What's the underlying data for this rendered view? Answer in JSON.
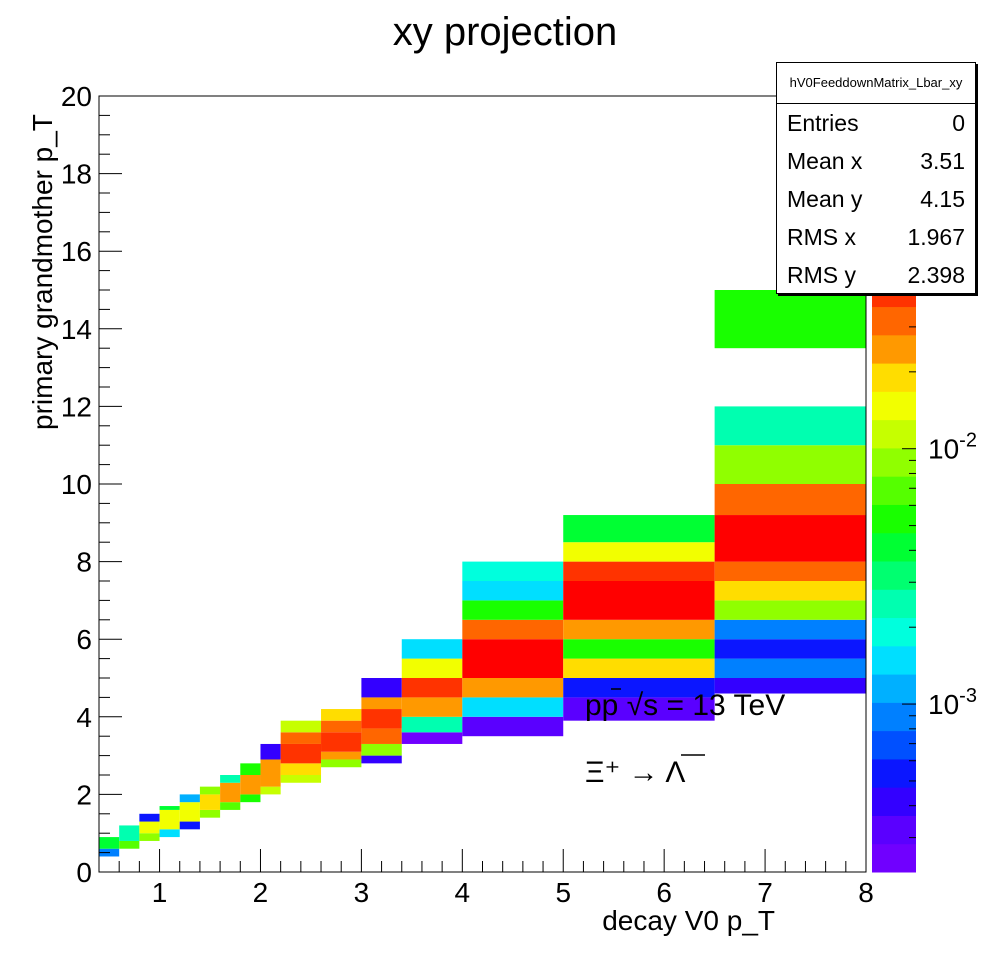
{
  "chart_data": {
    "type": "heatmap",
    "title": "xy projection",
    "xlabel": "decay V0 p_T",
    "ylabel": "primary grandmother p_T",
    "xlim": [
      0.4,
      8
    ],
    "ylim": [
      0,
      20
    ],
    "x_ticks": [
      "1",
      "2",
      "3",
      "4",
      "5",
      "6",
      "7",
      "8"
    ],
    "y_ticks": [
      "0",
      "2",
      "4",
      "6",
      "8",
      "10",
      "12",
      "14",
      "16",
      "18",
      "20"
    ],
    "z_scale": "log",
    "z_ticks": [
      "10^-3",
      "10^-2"
    ],
    "z_range": [
      0.00022,
      0.06
    ],
    "palette": [
      "#7000ff",
      "#5a00ff",
      "#3300ff",
      "#0b16ff",
      "#0050ff",
      "#0080ff",
      "#00b0ff",
      "#00dfff",
      "#00ffdd",
      "#00ffb0",
      "#00ff70",
      "#00ff33",
      "#19ff00",
      "#55ff00",
      "#90ff00",
      "#c6ff00",
      "#f2ff00",
      "#ffdd00",
      "#ff9900",
      "#ff6600",
      "#ff3300",
      "#ff0000"
    ],
    "cells": [
      {
        "x": [
          0.4,
          0.6
        ],
        "y": [
          0.4,
          0.6
        ],
        "c": 5
      },
      {
        "x": [
          0.4,
          0.6
        ],
        "y": [
          0.6,
          0.9
        ],
        "c": 11
      },
      {
        "x": [
          0.6,
          0.8
        ],
        "y": [
          0.6,
          0.8
        ],
        "c": 13
      },
      {
        "x": [
          0.6,
          0.8
        ],
        "y": [
          0.8,
          1.2
        ],
        "c": 9
      },
      {
        "x": [
          0.8,
          1.0
        ],
        "y": [
          0.8,
          1.0
        ],
        "c": 14
      },
      {
        "x": [
          0.8,
          1.0
        ],
        "y": [
          1.0,
          1.3
        ],
        "c": 16
      },
      {
        "x": [
          0.8,
          1.0
        ],
        "y": [
          1.3,
          1.5
        ],
        "c": 3
      },
      {
        "x": [
          1.0,
          1.2
        ],
        "y": [
          0.9,
          1.1
        ],
        "c": 7
      },
      {
        "x": [
          1.0,
          1.2
        ],
        "y": [
          1.1,
          1.6
        ],
        "c": 16
      },
      {
        "x": [
          1.0,
          1.2
        ],
        "y": [
          1.6,
          1.7
        ],
        "c": 11
      },
      {
        "x": [
          1.2,
          1.4
        ],
        "y": [
          1.1,
          1.3
        ],
        "c": 3
      },
      {
        "x": [
          1.2,
          1.4
        ],
        "y": [
          1.3,
          1.8
        ],
        "c": 16
      },
      {
        "x": [
          1.2,
          1.4
        ],
        "y": [
          1.8,
          2.0
        ],
        "c": 6
      },
      {
        "x": [
          1.4,
          1.6
        ],
        "y": [
          1.4,
          1.6
        ],
        "c": 14
      },
      {
        "x": [
          1.4,
          1.6
        ],
        "y": [
          1.6,
          2.0
        ],
        "c": 17
      },
      {
        "x": [
          1.4,
          1.6
        ],
        "y": [
          2.0,
          2.2
        ],
        "c": 14
      },
      {
        "x": [
          1.6,
          1.8
        ],
        "y": [
          1.6,
          1.8
        ],
        "c": 13
      },
      {
        "x": [
          1.6,
          1.8
        ],
        "y": [
          1.8,
          2.3
        ],
        "c": 18
      },
      {
        "x": [
          1.6,
          1.8
        ],
        "y": [
          2.3,
          2.5
        ],
        "c": 9
      },
      {
        "x": [
          1.8,
          2.0
        ],
        "y": [
          1.8,
          2.0
        ],
        "c": 12
      },
      {
        "x": [
          1.8,
          2.0
        ],
        "y": [
          2.0,
          2.5
        ],
        "c": 18
      },
      {
        "x": [
          1.8,
          2.0
        ],
        "y": [
          2.5,
          2.8
        ],
        "c": 12
      },
      {
        "x": [
          2.0,
          2.2
        ],
        "y": [
          2.0,
          2.2
        ],
        "c": 15
      },
      {
        "x": [
          2.0,
          2.2
        ],
        "y": [
          2.2,
          2.9
        ],
        "c": 18
      },
      {
        "x": [
          2.0,
          2.2
        ],
        "y": [
          2.9,
          3.3
        ],
        "c": 2
      },
      {
        "x": [
          2.2,
          2.6
        ],
        "y": [
          2.3,
          2.5
        ],
        "c": 15
      },
      {
        "x": [
          2.2,
          2.6
        ],
        "y": [
          2.5,
          2.8
        ],
        "c": 17
      },
      {
        "x": [
          2.2,
          2.6
        ],
        "y": [
          2.8,
          3.3
        ],
        "c": 20
      },
      {
        "x": [
          2.2,
          2.6
        ],
        "y": [
          3.3,
          3.6
        ],
        "c": 19
      },
      {
        "x": [
          2.2,
          2.6
        ],
        "y": [
          3.6,
          3.9
        ],
        "c": 15
      },
      {
        "x": [
          2.6,
          3.0
        ],
        "y": [
          2.7,
          2.9
        ],
        "c": 14
      },
      {
        "x": [
          2.6,
          3.0
        ],
        "y": [
          2.9,
          3.1
        ],
        "c": 18
      },
      {
        "x": [
          2.6,
          3.0
        ],
        "y": [
          3.1,
          3.6
        ],
        "c": 20
      },
      {
        "x": [
          2.6,
          3.0
        ],
        "y": [
          3.6,
          3.9
        ],
        "c": 19
      },
      {
        "x": [
          2.6,
          3.0
        ],
        "y": [
          3.9,
          4.2
        ],
        "c": 17
      },
      {
        "x": [
          3.0,
          3.4
        ],
        "y": [
          2.8,
          3.0
        ],
        "c": 2
      },
      {
        "x": [
          3.0,
          3.4
        ],
        "y": [
          3.0,
          3.3
        ],
        "c": 14
      },
      {
        "x": [
          3.0,
          3.4
        ],
        "y": [
          3.3,
          3.7
        ],
        "c": 19
      },
      {
        "x": [
          3.0,
          3.4
        ],
        "y": [
          3.7,
          4.2
        ],
        "c": 20
      },
      {
        "x": [
          3.0,
          3.4
        ],
        "y": [
          4.2,
          4.5
        ],
        "c": 18
      },
      {
        "x": [
          3.0,
          3.4
        ],
        "y": [
          4.5,
          5.0
        ],
        "c": 2
      },
      {
        "x": [
          3.4,
          4.0
        ],
        "y": [
          3.3,
          3.6
        ],
        "c": 0
      },
      {
        "x": [
          3.4,
          4.0
        ],
        "y": [
          3.6,
          4.0
        ],
        "c": 9
      },
      {
        "x": [
          3.4,
          4.0
        ],
        "y": [
          4.0,
          4.5
        ],
        "c": 18
      },
      {
        "x": [
          3.4,
          4.0
        ],
        "y": [
          4.5,
          5.0
        ],
        "c": 20
      },
      {
        "x": [
          3.4,
          4.0
        ],
        "y": [
          5.0,
          5.5
        ],
        "c": 16
      },
      {
        "x": [
          3.4,
          4.0
        ],
        "y": [
          5.5,
          6.0
        ],
        "c": 7
      },
      {
        "x": [
          4.0,
          5.0
        ],
        "y": [
          3.5,
          4.0
        ],
        "c": 1
      },
      {
        "x": [
          4.0,
          5.0
        ],
        "y": [
          4.0,
          4.5
        ],
        "c": 7
      },
      {
        "x": [
          4.0,
          5.0
        ],
        "y": [
          4.5,
          5.0
        ],
        "c": 18
      },
      {
        "x": [
          4.0,
          5.0
        ],
        "y": [
          5.0,
          6.0
        ],
        "c": 21
      },
      {
        "x": [
          4.0,
          5.0
        ],
        "y": [
          6.0,
          6.5
        ],
        "c": 19
      },
      {
        "x": [
          4.0,
          5.0
        ],
        "y": [
          6.5,
          7.0
        ],
        "c": 12
      },
      {
        "x": [
          4.0,
          5.0
        ],
        "y": [
          7.0,
          7.5
        ],
        "c": 7
      },
      {
        "x": [
          4.0,
          5.0
        ],
        "y": [
          7.5,
          8.0
        ],
        "c": 8
      },
      {
        "x": [
          5.0,
          6.5
        ],
        "y": [
          3.9,
          4.5
        ],
        "c": 1
      },
      {
        "x": [
          5.0,
          6.5
        ],
        "y": [
          4.5,
          5.0
        ],
        "c": 3
      },
      {
        "x": [
          5.0,
          6.5
        ],
        "y": [
          5.0,
          5.5
        ],
        "c": 17
      },
      {
        "x": [
          5.0,
          6.5
        ],
        "y": [
          5.5,
          6.0
        ],
        "c": 12
      },
      {
        "x": [
          5.0,
          6.5
        ],
        "y": [
          6.0,
          6.5
        ],
        "c": 18
      },
      {
        "x": [
          5.0,
          6.5
        ],
        "y": [
          6.5,
          7.5
        ],
        "c": 21
      },
      {
        "x": [
          5.0,
          6.5
        ],
        "y": [
          7.5,
          8.0
        ],
        "c": 20
      },
      {
        "x": [
          5.0,
          6.5
        ],
        "y": [
          8.0,
          8.5
        ],
        "c": 16
      },
      {
        "x": [
          5.0,
          6.5
        ],
        "y": [
          8.5,
          9.2
        ],
        "c": 11
      },
      {
        "x": [
          6.5,
          8.0
        ],
        "y": [
          4.6,
          5.0
        ],
        "c": 2
      },
      {
        "x": [
          6.5,
          8.0
        ],
        "y": [
          5.0,
          5.5
        ],
        "c": 5
      },
      {
        "x": [
          6.5,
          8.0
        ],
        "y": [
          5.5,
          6.0
        ],
        "c": 3
      },
      {
        "x": [
          6.5,
          8.0
        ],
        "y": [
          6.0,
          6.5
        ],
        "c": 5
      },
      {
        "x": [
          6.5,
          8.0
        ],
        "y": [
          6.5,
          7.0
        ],
        "c": 14
      },
      {
        "x": [
          6.5,
          8.0
        ],
        "y": [
          7.0,
          7.5
        ],
        "c": 17
      },
      {
        "x": [
          6.5,
          8.0
        ],
        "y": [
          7.5,
          8.0
        ],
        "c": 19
      },
      {
        "x": [
          6.5,
          8.0
        ],
        "y": [
          8.0,
          9.2
        ],
        "c": 21
      },
      {
        "x": [
          6.5,
          8.0
        ],
        "y": [
          9.2,
          10.0
        ],
        "c": 19
      },
      {
        "x": [
          6.5,
          8.0
        ],
        "y": [
          10.0,
          11.0
        ],
        "c": 14
      },
      {
        "x": [
          6.5,
          8.0
        ],
        "y": [
          11.0,
          12.0
        ],
        "c": 9
      },
      {
        "x": [
          6.5,
          8.0
        ],
        "y": [
          13.5,
          15.0
        ],
        "c": 12
      }
    ]
  },
  "stats": {
    "name": "hV0FeeddownMatrix_Lbar_xy",
    "rows": [
      {
        "label": "Entries",
        "value": "0"
      },
      {
        "label": "Mean x",
        "value": "3.51"
      },
      {
        "label": "Mean y",
        "value": "4.15"
      },
      {
        "label": "RMS x",
        "value": "1.967"
      },
      {
        "label": "RMS y",
        "value": "2.398"
      }
    ]
  },
  "annotations": {
    "collision": "pp  √s = 13 TeV",
    "decay": "Ξ⁺ → Λ"
  }
}
